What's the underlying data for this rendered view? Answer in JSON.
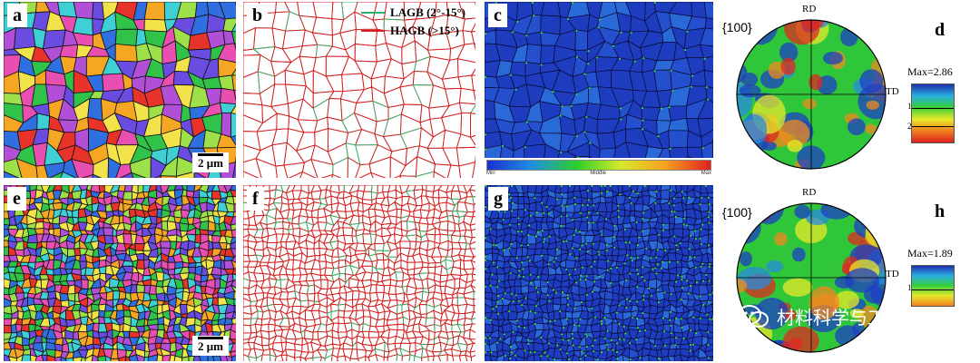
{
  "panels": {
    "a": "a",
    "b": "b",
    "c": "c",
    "d": "d",
    "e": "e",
    "f": "f",
    "g": "g",
    "h": "h"
  },
  "scalebar_label": "2 μm",
  "grain_boundary_legend": {
    "lagb": "LAGB (2°-15°)",
    "hagb": "HAGB (>15°)",
    "lagb_color": "#2bb36b",
    "hagb_color": "#d42020"
  },
  "kam_scale": {
    "min": "Min",
    "middle": "Middle",
    "max": "Max"
  },
  "pole_figures": [
    {
      "title": "{100}",
      "rd": "RD",
      "td": "TD",
      "max": "Max=2.86",
      "ticks": [
        "1",
        "2"
      ]
    },
    {
      "title": "{100}",
      "rd": "RD",
      "td": "TD",
      "max": "Max=1.89",
      "ticks": [
        "1"
      ]
    }
  ],
  "watermark": {
    "text": "材料科学与工程",
    "icon": "wechat-icon"
  },
  "colors": {
    "ipf_palette": [
      "#e8332a",
      "#2f6fe0",
      "#31c24a",
      "#f5a623",
      "#b14fd6",
      "#3fd0d6",
      "#e84fb0",
      "#9ee04a",
      "#6a4ce0",
      "#f2e34a"
    ],
    "kam_blue": "#1f3fc4",
    "kam_green": "#3bd63b"
  }
}
